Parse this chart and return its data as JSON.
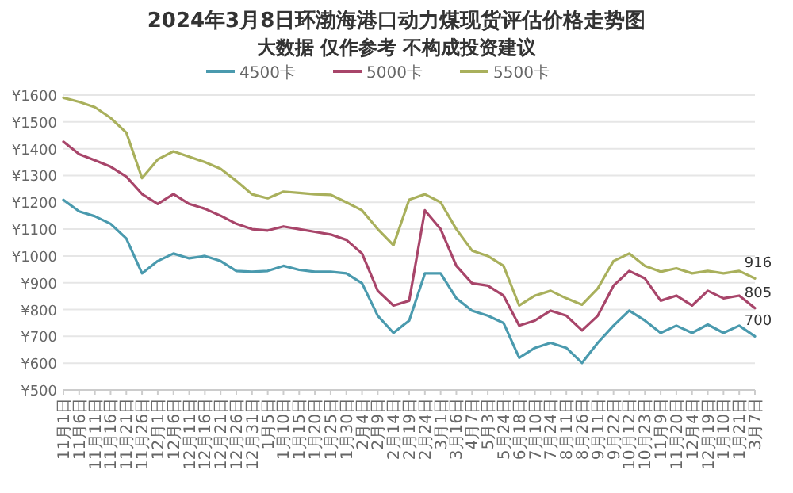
{
  "chart_data": {
    "type": "line",
    "title": "2024年3月8日环渤海港口动力煤现货评估价格走势图",
    "subtitle": "大数据 仅作参考 不构成投资建议",
    "categories": [
      "11月1日",
      "11月6日",
      "11月11日",
      "11月16日",
      "11月21日",
      "11月26日",
      "12月1日",
      "12月6日",
      "12月11日",
      "12月16日",
      "12月21日",
      "12月26日",
      "12月31日",
      "1月5日",
      "1月10日",
      "1月15日",
      "1月20日",
      "1月25日",
      "1月30日",
      "2月4日",
      "2月9日",
      "2月14日",
      "2月19日",
      "2月24日",
      "3月1日",
      "3月16日",
      "4月7日",
      "5月3日",
      "5月24日",
      "6月18日",
      "7月10日",
      "7月24日",
      "8月11日",
      "8月26日",
      "9月11日",
      "9月22日",
      "10月12日",
      "10月23日",
      "11月9日",
      "11月20日",
      "12月4日",
      "12月19日",
      "1月10日",
      "1月21日",
      "3月7日"
    ],
    "ylim": [
      500,
      1600
    ],
    "yticks": [
      {
        "value": 500,
        "label": "¥500"
      },
      {
        "value": 600,
        "label": "¥600"
      },
      {
        "value": 700,
        "label": "¥700"
      },
      {
        "value": 800,
        "label": "¥800"
      },
      {
        "value": 900,
        "label": "¥900"
      },
      {
        "value": 1000,
        "label": "¥1000"
      },
      {
        "value": 1100,
        "label": "¥1100"
      },
      {
        "value": 1200,
        "label": "¥1200"
      },
      {
        "value": 1300,
        "label": "¥1300"
      },
      {
        "value": 1400,
        "label": "¥1400"
      },
      {
        "value": 1500,
        "label": "¥1500"
      },
      {
        "value": 1600,
        "label": "¥1600"
      }
    ],
    "grid": "y",
    "legend": "top",
    "line_style": "solid",
    "series": [
      {
        "name": "4500卡",
        "color": "#4a9aae",
        "values": [
          1209,
          1166,
          1148,
          1120,
          1065,
          935,
          981,
          1009,
          991,
          1000,
          981,
          944,
          941,
          944,
          963,
          948,
          941,
          941,
          935,
          898,
          777,
          713,
          759,
          935,
          935,
          842,
          796,
          777,
          750,
          620,
          657,
          676,
          657,
          601,
          676,
          740,
          796,
          759,
          713,
          740,
          713,
          744,
          713,
          740,
          700
        ],
        "value_labels": [
          null,
          null,
          null,
          null,
          null,
          null,
          null,
          null,
          null,
          null,
          null,
          null,
          null,
          null,
          null,
          null,
          null,
          null,
          null,
          null,
          null,
          null,
          null,
          null,
          null,
          null,
          null,
          null,
          null,
          null,
          null,
          null,
          null,
          null,
          null,
          null,
          null,
          null,
          null,
          null,
          null,
          null,
          null,
          null,
          "700"
        ]
      },
      {
        "name": "5000卡",
        "color": "#a8456a",
        "values": [
          1426,
          1380,
          1357,
          1333,
          1296,
          1231,
          1194,
          1231,
          1194,
          1176,
          1150,
          1120,
          1100,
          1095,
          1110,
          1100,
          1090,
          1080,
          1060,
          1009,
          870,
          815,
          833,
          1170,
          1100,
          963,
          898,
          889,
          852,
          740,
          759,
          796,
          777,
          722,
          777,
          889,
          944,
          916,
          833,
          852,
          815,
          870,
          842,
          852,
          805
        ],
        "value_labels": [
          null,
          null,
          null,
          null,
          null,
          null,
          null,
          null,
          null,
          null,
          null,
          null,
          null,
          null,
          null,
          null,
          null,
          null,
          null,
          null,
          null,
          null,
          null,
          null,
          null,
          null,
          null,
          null,
          null,
          null,
          null,
          null,
          null,
          null,
          null,
          null,
          null,
          null,
          null,
          null,
          null,
          null,
          null,
          null,
          "805"
        ]
      },
      {
        "name": "5500卡",
        "color": "#a9b05c",
        "values": [
          1590,
          1575,
          1555,
          1515,
          1460,
          1290,
          1360,
          1390,
          1370,
          1350,
          1325,
          1280,
          1230,
          1215,
          1240,
          1235,
          1230,
          1228,
          1200,
          1170,
          1100,
          1040,
          1210,
          1230,
          1200,
          1100,
          1020,
          1000,
          963,
          815,
          852,
          870,
          842,
          818,
          879,
          981,
          1009,
          963,
          941,
          954,
          935,
          944,
          935,
          944,
          916
        ],
        "value_labels": [
          null,
          null,
          null,
          null,
          null,
          null,
          null,
          null,
          null,
          null,
          null,
          null,
          null,
          null,
          null,
          null,
          null,
          null,
          null,
          null,
          null,
          null,
          null,
          null,
          null,
          null,
          null,
          null,
          null,
          null,
          null,
          null,
          null,
          null,
          null,
          null,
          null,
          null,
          null,
          null,
          null,
          null,
          null,
          null,
          "916"
        ]
      }
    ]
  }
}
